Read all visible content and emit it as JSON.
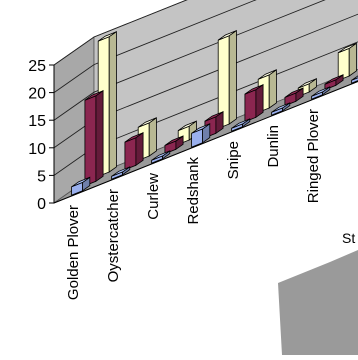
{
  "chart_data": {
    "type": "bar",
    "categories": [
      "Golden Plover",
      "Oystercatcher",
      "Curlew",
      "Redshank",
      "Snipe",
      "Dunlin",
      "Ringed Plover"
    ],
    "series": [
      {
        "values": [
          1.5,
          0.5,
          0.5,
          2.5,
          0.5,
          0.5,
          0.5
        ],
        "color": "#9ab0ee"
      },
      {
        "values": [
          15.5,
          5.0,
          1.5,
          3.0,
          5.0,
          1.5,
          1.0
        ],
        "color": "#8b2650"
      },
      {
        "values": [
          24.5,
          6.0,
          2.5,
          16.0,
          6.0,
          1.5,
          5.0
        ],
        "color": "#ffffcc"
      }
    ],
    "extra_category": {
      "values": [
        0.5,
        1.5,
        2.5
      ]
    },
    "ylim": [
      0,
      25
    ],
    "yticks": [
      "0",
      "5",
      "10",
      "15",
      "20",
      "25"
    ],
    "grid": true,
    "cropped_label": "St"
  }
}
